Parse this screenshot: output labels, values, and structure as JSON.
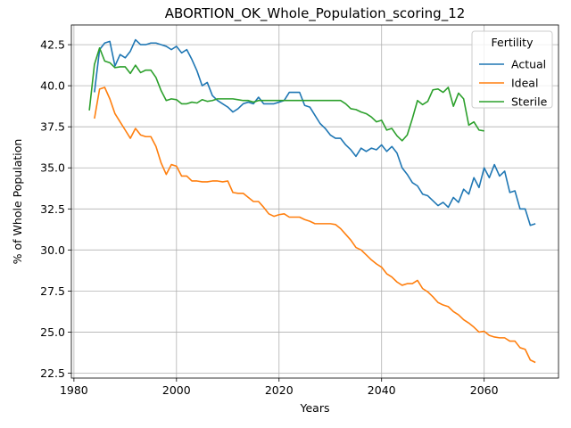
{
  "chart_data": {
    "type": "line",
    "title": "ABORTION_OK_Whole_Population_scoring_12",
    "xlabel": "Years",
    "ylabel": "% of Whole Population",
    "xlim": [
      1979.5,
      2074.5
    ],
    "ylim": [
      22.2,
      43.7
    ],
    "xticks": [
      1980,
      2000,
      2020,
      2040,
      2060
    ],
    "yticks": [
      22.5,
      25.0,
      27.5,
      30.0,
      32.5,
      35.0,
      37.5,
      40.0,
      42.5
    ],
    "grid": true,
    "legend": {
      "title": "Fertility",
      "placement": "top-right"
    },
    "series": [
      {
        "name": "Actual",
        "color": "#1f77b4",
        "x": [
          1984,
          1985,
          1986,
          1987,
          1988,
          1989,
          1990,
          1991,
          1992,
          1993,
          1994,
          1995,
          1996,
          1997,
          1998,
          1999,
          2000,
          2001,
          2002,
          2003,
          2004,
          2005,
          2006,
          2007,
          2008,
          2009,
          2010,
          2011,
          2012,
          2013,
          2014,
          2015,
          2016,
          2017,
          2018,
          2019,
          2020,
          2021,
          2022,
          2023,
          2024,
          2025,
          2026,
          2027,
          2028,
          2029,
          2030,
          2031,
          2032,
          2033,
          2034,
          2035,
          2036,
          2037,
          2038,
          2039,
          2040,
          2041,
          2042,
          2043,
          2044,
          2045,
          2046,
          2047,
          2048,
          2049,
          2050,
          2051,
          2052,
          2053,
          2054,
          2055,
          2056,
          2057,
          2058,
          2059,
          2060,
          2061,
          2062,
          2063,
          2064,
          2065,
          2066,
          2067,
          2068,
          2069,
          2070
        ],
        "values": [
          39.6,
          42.2,
          42.6,
          42.7,
          41.2,
          41.9,
          41.7,
          42.1,
          42.8,
          42.5,
          42.5,
          42.6,
          42.6,
          42.5,
          42.4,
          42.2,
          42.4,
          42.0,
          42.2,
          41.6,
          40.9,
          40.0,
          40.2,
          39.4,
          39.1,
          38.9,
          38.7,
          38.4,
          38.6,
          38.9,
          39.0,
          38.9,
          39.3,
          38.9,
          38.9,
          38.9,
          39.0,
          39.1,
          39.6,
          39.6,
          39.6,
          38.8,
          38.7,
          38.2,
          37.7,
          37.4,
          37.0,
          36.8,
          36.8,
          36.4,
          36.1,
          35.7,
          36.2,
          36.0,
          36.2,
          36.1,
          36.4,
          36.0,
          36.3,
          35.9,
          35.0,
          34.6,
          34.1,
          33.9,
          33.4,
          33.3,
          33.0,
          32.7,
          32.9,
          32.6,
          33.2,
          32.9,
          33.7,
          33.4,
          34.4,
          33.8,
          35.0,
          34.4,
          35.2,
          34.5,
          34.8,
          33.5,
          33.6,
          32.5,
          32.5,
          31.5,
          31.6
        ]
      },
      {
        "name": "Ideal",
        "color": "#ff7f0e",
        "x": [
          1984,
          1985,
          1986,
          1987,
          1988,
          1989,
          1990,
          1991,
          1992,
          1993,
          1994,
          1995,
          1996,
          1997,
          1998,
          1999,
          2000,
          2001,
          2002,
          2003,
          2004,
          2005,
          2006,
          2007,
          2008,
          2009,
          2010,
          2011,
          2012,
          2013,
          2014,
          2015,
          2016,
          2017,
          2018,
          2019,
          2020,
          2021,
          2022,
          2023,
          2024,
          2025,
          2026,
          2027,
          2028,
          2029,
          2030,
          2031,
          2032,
          2033,
          2034,
          2035,
          2036,
          2037,
          2038,
          2039,
          2040,
          2041,
          2042,
          2043,
          2044,
          2045,
          2046,
          2047,
          2048,
          2049,
          2050,
          2051,
          2052,
          2053,
          2054,
          2055,
          2056,
          2057,
          2058,
          2059,
          2060,
          2061,
          2062,
          2063,
          2064,
          2065,
          2066,
          2067,
          2068,
          2069,
          2070
        ],
        "values": [
          38.0,
          39.8,
          39.9,
          39.2,
          38.3,
          37.8,
          37.3,
          36.8,
          37.4,
          37.0,
          36.9,
          36.9,
          36.3,
          35.3,
          34.6,
          35.2,
          35.1,
          34.5,
          34.5,
          34.2,
          34.2,
          34.15,
          34.15,
          34.2,
          34.2,
          34.15,
          34.2,
          33.5,
          33.45,
          33.45,
          33.2,
          32.95,
          32.95,
          32.6,
          32.2,
          32.05,
          32.15,
          32.2,
          32.0,
          32.0,
          32.0,
          31.85,
          31.75,
          31.6,
          31.6,
          31.6,
          31.6,
          31.55,
          31.3,
          30.95,
          30.6,
          30.15,
          30.0,
          29.7,
          29.4,
          29.15,
          28.95,
          28.55,
          28.35,
          28.05,
          27.85,
          27.95,
          27.95,
          28.15,
          27.65,
          27.45,
          27.15,
          26.8,
          26.65,
          26.55,
          26.25,
          26.05,
          25.75,
          25.55,
          25.3,
          25.0,
          25.05,
          24.8,
          24.7,
          24.65,
          24.65,
          24.45,
          24.45,
          24.05,
          23.95,
          23.3,
          23.15
        ]
      },
      {
        "name": "Sterile",
        "color": "#2ca02c",
        "x": [
          1983,
          1984,
          1985,
          1986,
          1987,
          1988,
          1989,
          1990,
          1991,
          1992,
          1993,
          1994,
          1995,
          1996,
          1997,
          1998,
          1999,
          2000,
          2001,
          2002,
          2003,
          2004,
          2005,
          2006,
          2007,
          2008,
          2009,
          2010,
          2011,
          2012,
          2013,
          2014,
          2015,
          2016,
          2017,
          2018,
          2019,
          2020,
          2021,
          2022,
          2023,
          2024,
          2025,
          2026,
          2027,
          2028,
          2029,
          2030,
          2031,
          2032,
          2033,
          2034,
          2035,
          2036,
          2037,
          2038,
          2039,
          2040,
          2041,
          2042,
          2043,
          2044,
          2045,
          2046,
          2047,
          2048,
          2049,
          2050,
          2051,
          2052,
          2053,
          2054,
          2055,
          2056,
          2057,
          2058,
          2059,
          2060
        ],
        "values": [
          38.5,
          41.3,
          42.3,
          41.5,
          41.4,
          41.1,
          41.15,
          41.15,
          40.75,
          41.25,
          40.8,
          40.95,
          40.95,
          40.5,
          39.7,
          39.1,
          39.2,
          39.15,
          38.9,
          38.9,
          39.0,
          38.95,
          39.15,
          39.05,
          39.1,
          39.2,
          39.2,
          39.2,
          39.2,
          39.15,
          39.1,
          39.1,
          39.0,
          39.1,
          39.1,
          39.1,
          39.1,
          39.1,
          39.1,
          39.1,
          39.1,
          39.1,
          39.1,
          39.1,
          39.1,
          39.1,
          39.1,
          39.1,
          39.1,
          39.1,
          38.9,
          38.6,
          38.55,
          38.4,
          38.3,
          38.1,
          37.8,
          37.9,
          37.3,
          37.4,
          36.95,
          36.65,
          37.0,
          38.0,
          39.1,
          38.85,
          39.05,
          39.75,
          39.8,
          39.6,
          39.9,
          38.75,
          39.55,
          39.2,
          37.6,
          37.8,
          37.3,
          37.25
        ]
      }
    ]
  }
}
